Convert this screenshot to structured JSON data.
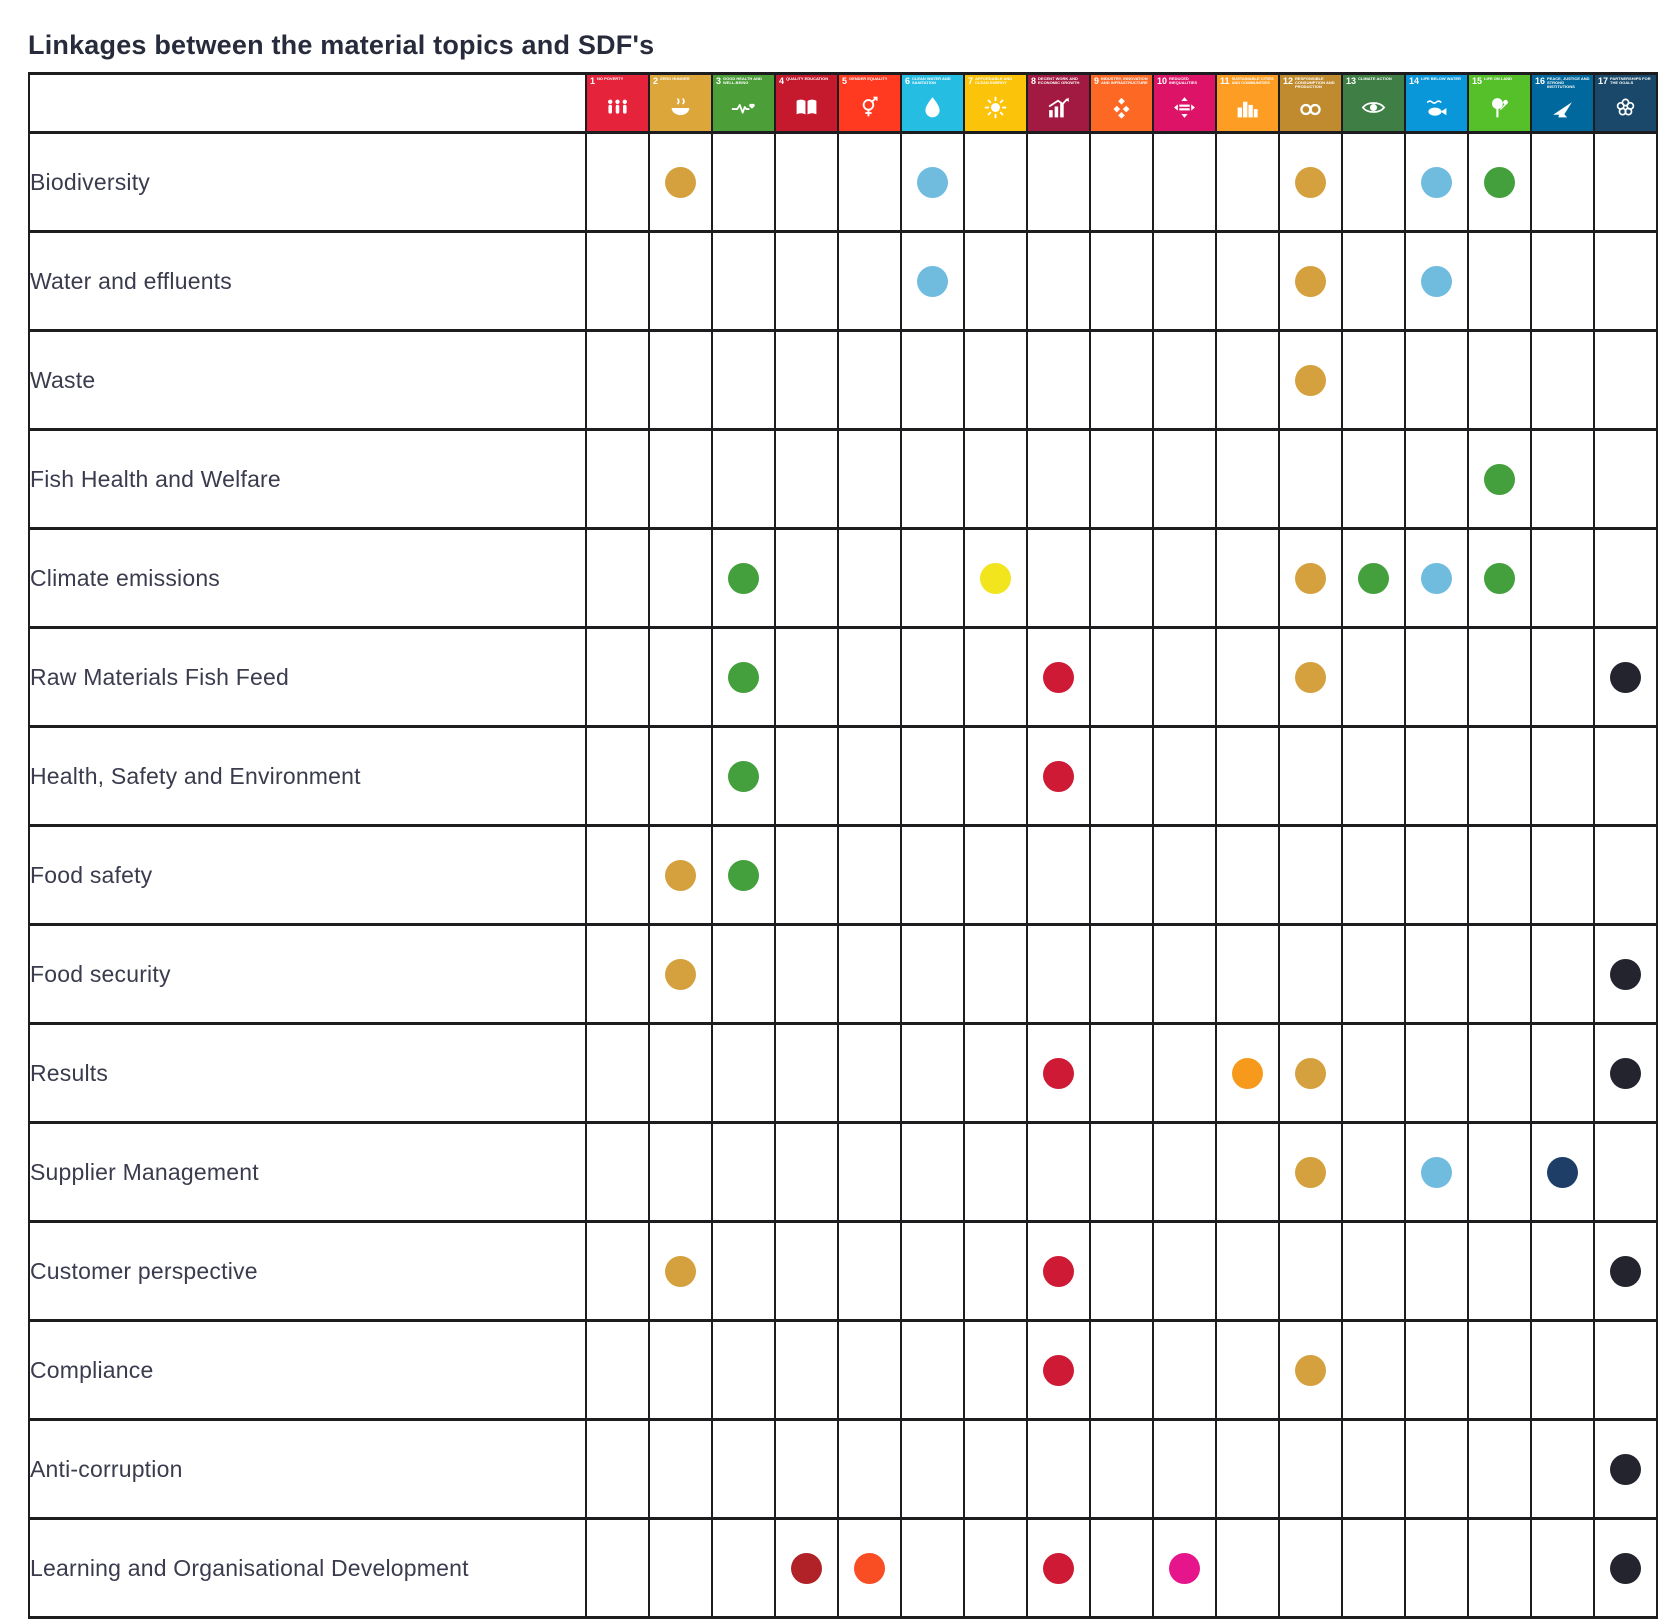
{
  "title": "Linkages between the material topics and SDF's",
  "table": {
    "sdg_columns": [
      {
        "num": 1,
        "label": "No Poverty",
        "color": "#E5243B",
        "icon": "people-icon"
      },
      {
        "num": 2,
        "label": "Zero Hunger",
        "color": "#DDA63A",
        "icon": "bowl-icon"
      },
      {
        "num": 3,
        "label": "Good Health and Well-Being",
        "color": "#4C9F38",
        "icon": "heartbeat-icon"
      },
      {
        "num": 4,
        "label": "Quality Education",
        "color": "#C5192D",
        "icon": "book-icon"
      },
      {
        "num": 5,
        "label": "Gender Equality",
        "color": "#FF3A21",
        "icon": "gender-equality-icon"
      },
      {
        "num": 6,
        "label": "Clean Water and Sanitation",
        "color": "#26BDE2",
        "icon": "water-drop-icon"
      },
      {
        "num": 7,
        "label": "Affordable and Clean Energy",
        "color": "#FCC30B",
        "icon": "sun-icon"
      },
      {
        "num": 8,
        "label": "Decent Work and Economic Growth",
        "color": "#A21942",
        "icon": "growth-chart-icon"
      },
      {
        "num": 9,
        "label": "Industry, Innovation and Infrastructure",
        "color": "#FD6925",
        "icon": "cubes-icon"
      },
      {
        "num": 10,
        "label": "Reduced Inequalities",
        "color": "#DD1367",
        "icon": "equality-icon"
      },
      {
        "num": 11,
        "label": "Sustainable Cities and Communities",
        "color": "#FD9D24",
        "icon": "city-icon"
      },
      {
        "num": 12,
        "label": "Responsible Consumption and Production",
        "color": "#BF8B2E",
        "icon": "infinity-icon"
      },
      {
        "num": 13,
        "label": "Climate Action",
        "color": "#3F7E44",
        "icon": "eye-globe-icon"
      },
      {
        "num": 14,
        "label": "Life Below Water",
        "color": "#0A97D9",
        "icon": "fish-icon"
      },
      {
        "num": 15,
        "label": "Life on Land",
        "color": "#56C02B",
        "icon": "tree-icon"
      },
      {
        "num": 16,
        "label": "Peace, Justice and Strong Institutions",
        "color": "#00689D",
        "icon": "dove-icon"
      },
      {
        "num": 17,
        "label": "Partnerships for the Goals",
        "color": "#19486A",
        "icon": "rings-icon"
      }
    ],
    "rows": [
      {
        "topic": "Biodiversity",
        "dots": [
          {
            "col": 2,
            "color": "#D5A13E"
          },
          {
            "col": 6,
            "color": "#70BCDF"
          },
          {
            "col": 12,
            "color": "#D5A13E"
          },
          {
            "col": 14,
            "color": "#70BCDF"
          },
          {
            "col": 15,
            "color": "#43A03C"
          }
        ]
      },
      {
        "topic": "Water and effluents",
        "dots": [
          {
            "col": 6,
            "color": "#70BCDF"
          },
          {
            "col": 12,
            "color": "#D5A13E"
          },
          {
            "col": 14,
            "color": "#70BCDF"
          }
        ]
      },
      {
        "topic": "Waste",
        "dots": [
          {
            "col": 12,
            "color": "#D5A13E"
          }
        ]
      },
      {
        "topic": "Fish Health and Welfare",
        "dots": [
          {
            "col": 15,
            "color": "#43A03C"
          }
        ]
      },
      {
        "topic": "Climate emissions",
        "dots": [
          {
            "col": 3,
            "color": "#43A03C"
          },
          {
            "col": 7,
            "color": "#F2E41D"
          },
          {
            "col": 12,
            "color": "#D5A13E"
          },
          {
            "col": 13,
            "color": "#43A03C"
          },
          {
            "col": 14,
            "color": "#70BCDF"
          },
          {
            "col": 15,
            "color": "#43A03C"
          }
        ]
      },
      {
        "topic": "Raw Materials Fish Feed",
        "dots": [
          {
            "col": 3,
            "color": "#43A03C"
          },
          {
            "col": 8,
            "color": "#CE1A34"
          },
          {
            "col": 12,
            "color": "#D5A13E"
          },
          {
            "col": 17,
            "color": "#23242E"
          }
        ]
      },
      {
        "topic": "Health, Safety and Environment",
        "dots": [
          {
            "col": 3,
            "color": "#43A03C"
          },
          {
            "col": 8,
            "color": "#CE1A34"
          }
        ]
      },
      {
        "topic": "Food safety",
        "dots": [
          {
            "col": 2,
            "color": "#D5A13E"
          },
          {
            "col": 3,
            "color": "#43A03C"
          }
        ]
      },
      {
        "topic": "Food security",
        "dots": [
          {
            "col": 2,
            "color": "#D5A13E"
          },
          {
            "col": 17,
            "color": "#23242E"
          }
        ]
      },
      {
        "topic": "Results",
        "dots": [
          {
            "col": 8,
            "color": "#CE1A34"
          },
          {
            "col": 11,
            "color": "#F79A1B"
          },
          {
            "col": 12,
            "color": "#D5A13E"
          },
          {
            "col": 17,
            "color": "#23242E"
          }
        ]
      },
      {
        "topic": "Supplier Management",
        "dots": [
          {
            "col": 12,
            "color": "#D5A13E"
          },
          {
            "col": 14,
            "color": "#70BCDF"
          },
          {
            "col": 16,
            "color": "#1E3E68"
          }
        ]
      },
      {
        "topic": "Customer perspective",
        "dots": [
          {
            "col": 2,
            "color": "#D5A13E"
          },
          {
            "col": 8,
            "color": "#CE1A34"
          },
          {
            "col": 17,
            "color": "#23242E"
          }
        ]
      },
      {
        "topic": "Compliance",
        "dots": [
          {
            "col": 8,
            "color": "#CE1A34"
          },
          {
            "col": 12,
            "color": "#D5A13E"
          }
        ]
      },
      {
        "topic": "Anti-corruption",
        "dots": [
          {
            "col": 17,
            "color": "#23242E"
          }
        ]
      },
      {
        "topic": "Learning and Organisational Development",
        "dots": [
          {
            "col": 4,
            "color": "#B02128"
          },
          {
            "col": 5,
            "color": "#F94D23"
          },
          {
            "col": 8,
            "color": "#CE1A34"
          },
          {
            "col": 10,
            "color": "#E6158C"
          },
          {
            "col": 17,
            "color": "#23242E"
          }
        ]
      }
    ]
  },
  "chart_data": {
    "type": "table",
    "title": "Linkages between the material topics and SDF's",
    "columns": [
      "SDG 1 No Poverty",
      "SDG 2 Zero Hunger",
      "SDG 3 Good Health and Well-Being",
      "SDG 4 Quality Education",
      "SDG 5 Gender Equality",
      "SDG 6 Clean Water and Sanitation",
      "SDG 7 Affordable and Clean Energy",
      "SDG 8 Decent Work and Economic Growth",
      "SDG 9 Industry, Innovation and Infrastructure",
      "SDG 10 Reduced Inequalities",
      "SDG 11 Sustainable Cities and Communities",
      "SDG 12 Responsible Consumption and Production",
      "SDG 13 Climate Action",
      "SDG 14 Life Below Water",
      "SDG 15 Life on Land",
      "SDG 16 Peace, Justice and Strong Institutions",
      "SDG 17 Partnerships for the Goals"
    ],
    "rows": [
      {
        "topic": "Biodiversity",
        "linked_sdgs": [
          2,
          6,
          12,
          14,
          15
        ]
      },
      {
        "topic": "Water and effluents",
        "linked_sdgs": [
          6,
          12,
          14
        ]
      },
      {
        "topic": "Waste",
        "linked_sdgs": [
          12
        ]
      },
      {
        "topic": "Fish Health and Welfare",
        "linked_sdgs": [
          15
        ]
      },
      {
        "topic": "Climate emissions",
        "linked_sdgs": [
          3,
          7,
          12,
          13,
          14,
          15
        ]
      },
      {
        "topic": "Raw Materials Fish Feed",
        "linked_sdgs": [
          3,
          8,
          12,
          17
        ]
      },
      {
        "topic": "Health, Safety and Environment",
        "linked_sdgs": [
          3,
          8
        ]
      },
      {
        "topic": "Food safety",
        "linked_sdgs": [
          2,
          3
        ]
      },
      {
        "topic": "Food security",
        "linked_sdgs": [
          2,
          17
        ]
      },
      {
        "topic": "Results",
        "linked_sdgs": [
          8,
          11,
          12,
          17
        ]
      },
      {
        "topic": "Supplier Management",
        "linked_sdgs": [
          12,
          14,
          16
        ]
      },
      {
        "topic": "Customer perspective",
        "linked_sdgs": [
          2,
          8,
          17
        ]
      },
      {
        "topic": "Compliance",
        "linked_sdgs": [
          8,
          12
        ]
      },
      {
        "topic": "Anti-corruption",
        "linked_sdgs": [
          17
        ]
      },
      {
        "topic": "Learning and Organisational Development",
        "linked_sdgs": [
          4,
          5,
          8,
          10,
          17
        ]
      }
    ]
  }
}
